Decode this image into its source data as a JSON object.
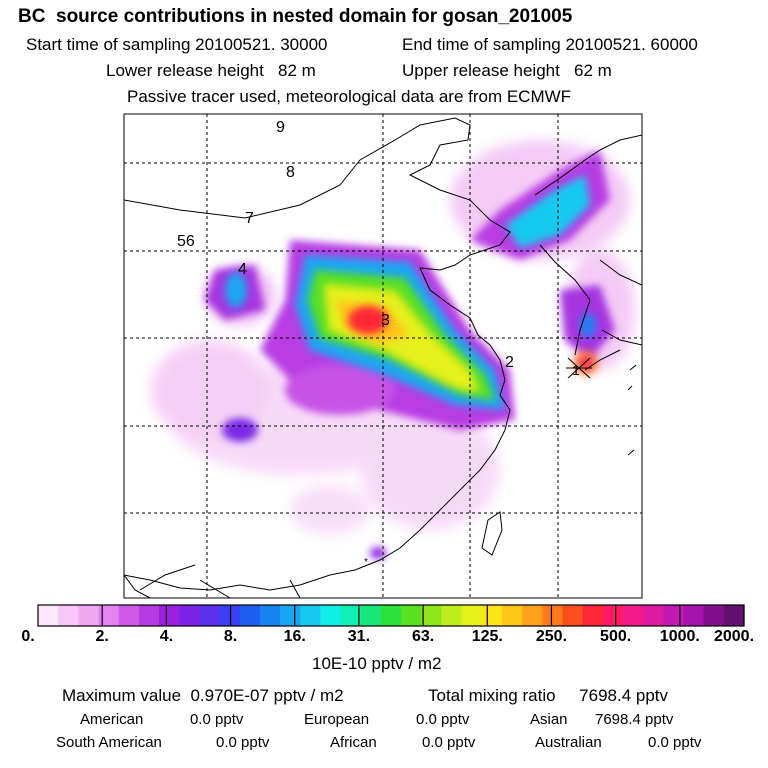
{
  "header": {
    "title": "BC  source contributions in nested domain for gosan_201005",
    "start_label": "Start time of sampling 20100521. 30000",
    "end_label": "End time of sampling 20100521. 60000",
    "lower_label": "Lower release height   82 m",
    "upper_label": "Upper release height   62 m",
    "note": "Passive tracer used, meteorological data are from ECMWF"
  },
  "chart_data": {
    "type": "heatmap",
    "title": "BC  source contributions in nested domain for gosan_201005",
    "map_markers": [
      "9",
      "8",
      "7",
      "56",
      "4",
      "3",
      "2",
      "1"
    ],
    "receptor": "Gosan",
    "colorbar": {
      "ticks": [
        "0.",
        "2.",
        "4.",
        "8.",
        "16.",
        "31.",
        "63.",
        "125.",
        "250.",
        "500.",
        "1000.",
        "2000."
      ],
      "units": "10E-10 pptv / m2",
      "colors": [
        "#fce8fc",
        "#f6c7f7",
        "#f0a8f2",
        "#e484ee",
        "#cf5ce8",
        "#b63ae2",
        "#9b1fe0",
        "#7b22e6",
        "#5a30ec",
        "#3a3ff2",
        "#1f5ef2",
        "#1a82f3",
        "#18a6f1",
        "#17c9ef",
        "#12eee8",
        "#10f0b2",
        "#18e67a",
        "#2ee03e",
        "#58e021",
        "#8ee61a",
        "#bfee1a",
        "#e6f01a",
        "#fde31a",
        "#ffc51a",
        "#ffa21a",
        "#ff7b1c",
        "#ff4e22",
        "#ff2638",
        "#ff1a62",
        "#f21a88",
        "#dc1aa2",
        "#c21ab0",
        "#a414a8",
        "#820f8e",
        "#60106d"
      ]
    }
  },
  "stats": {
    "max_label": "Maximum value  0.970E-07 pptv / m2",
    "total_label": "Total mixing ratio     7698.4 pptv"
  },
  "regions": {
    "american": "American",
    "american_val": "0.0 pptv",
    "european": "European",
    "european_val": "0.0 pptv",
    "asian": "Asian",
    "asian_val": "7698.4 pptv",
    "south_american": "South American",
    "south_american_val": "0.0 pptv",
    "african": "African",
    "african_val": "0.0 pptv",
    "australian": "Australian",
    "australian_val": "0.0 pptv"
  }
}
